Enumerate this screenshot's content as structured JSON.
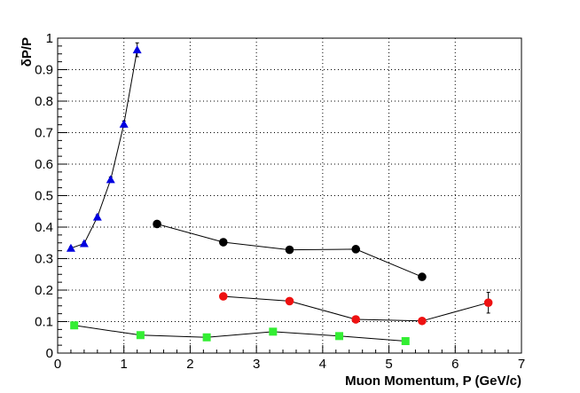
{
  "chart_data": {
    "type": "scatter",
    "title": "",
    "xlabel": "Muon Momentum, P (GeV/c)",
    "ylabel": "δP/P",
    "xlim": [
      0,
      7
    ],
    "ylim": [
      0,
      1
    ],
    "xticks": [
      0,
      1,
      2,
      3,
      4,
      5,
      6,
      7
    ],
    "yticks": [
      0,
      0.1,
      0.2,
      0.3,
      0.4,
      0.5,
      0.6,
      0.7,
      0.8,
      0.9,
      1
    ],
    "grid": true,
    "legend": "none",
    "series": [
      {
        "marker": "triangle",
        "color": "#0000e0",
        "connected": true,
        "x": [
          0.2,
          0.4,
          0.6,
          0.8,
          1.0,
          1.2
        ],
        "y": [
          0.333,
          0.348,
          0.432,
          0.551,
          0.727,
          0.963
        ],
        "yerr": [
          0.005,
          0.005,
          0.007,
          0.008,
          0.01,
          0.022
        ]
      },
      {
        "marker": "circle",
        "color": "#000000",
        "connected": true,
        "x": [
          1.5,
          2.5,
          3.5,
          4.5,
          5.5
        ],
        "y": [
          0.41,
          0.352,
          0.328,
          0.33,
          0.242
        ],
        "yerr": [
          0.005,
          0.005,
          0.005,
          0.005,
          0.005
        ]
      },
      {
        "marker": "circle",
        "color": "#ee1111",
        "connected": true,
        "x": [
          2.5,
          3.5,
          4.5,
          5.5,
          6.5
        ],
        "y": [
          0.18,
          0.165,
          0.107,
          0.102,
          0.16
        ],
        "yerr": [
          0.005,
          0.005,
          0.005,
          0.005,
          0.033
        ]
      },
      {
        "marker": "square",
        "color": "#33ee33",
        "connected": true,
        "x": [
          0.25,
          1.25,
          2.25,
          3.25,
          4.25,
          5.25
        ],
        "y": [
          0.088,
          0.057,
          0.05,
          0.068,
          0.054,
          0.038
        ],
        "yerr": [
          0.003,
          0.003,
          0.003,
          0.003,
          0.003,
          0.003
        ]
      }
    ]
  }
}
